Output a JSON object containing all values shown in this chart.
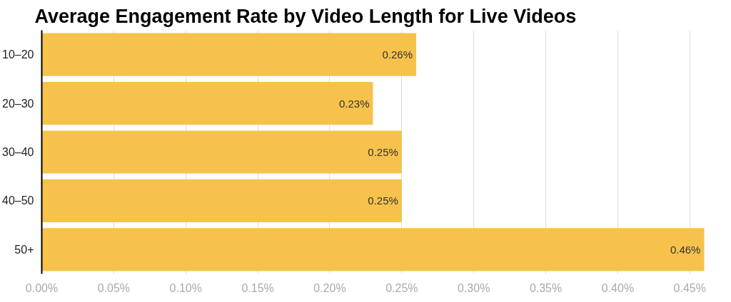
{
  "chart_data": {
    "type": "bar",
    "orientation": "horizontal",
    "title": "Average Engagement Rate by Video Length for Live Videos",
    "categories": [
      "10–20",
      "20–30",
      "30–40",
      "40–50",
      "50+"
    ],
    "values": [
      0.26,
      0.23,
      0.25,
      0.25,
      0.46
    ],
    "value_labels": [
      "0.26%",
      "0.23%",
      "0.25%",
      "0.25%",
      "0.46%"
    ],
    "color": "#f6c24c",
    "xlim": [
      0,
      0.462
    ],
    "xticks": [
      {
        "value": 0,
        "label": "0.00%"
      },
      {
        "value": 0.05,
        "label": "0.05%"
      },
      {
        "value": 0.1,
        "label": "0.10%"
      },
      {
        "value": 0.15,
        "label": "0.15%"
      },
      {
        "value": 0.2,
        "label": "0.20%"
      },
      {
        "value": 0.25,
        "label": "0.25%"
      },
      {
        "value": 0.3,
        "label": "0.30%"
      },
      {
        "value": 0.35,
        "label": "0.35%"
      },
      {
        "value": 0.4,
        "label": "0.40%"
      },
      {
        "value": 0.45,
        "label": "0.45%"
      }
    ],
    "grid": "x"
  }
}
